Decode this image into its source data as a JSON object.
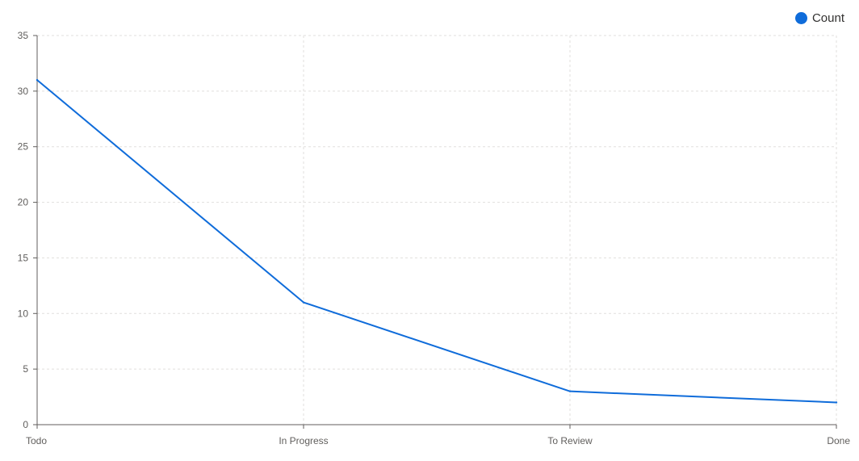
{
  "chart_data": {
    "type": "line",
    "categories": [
      "Todo",
      "In Progress",
      "To Review",
      "Done"
    ],
    "series": [
      {
        "name": "Count",
        "values": [
          31,
          11,
          3,
          2
        ]
      }
    ],
    "title": "",
    "xlabel": "",
    "ylabel": "",
    "ylim": [
      0,
      35
    ],
    "yticks": [
      0,
      5,
      10,
      15,
      20,
      25,
      30,
      35
    ],
    "grid": true,
    "legend_position": "top-right"
  },
  "colors": {
    "series": "#0f6cda",
    "grid": "#e1dfdd",
    "axis": "#605e5c",
    "text": "#605e5c"
  }
}
